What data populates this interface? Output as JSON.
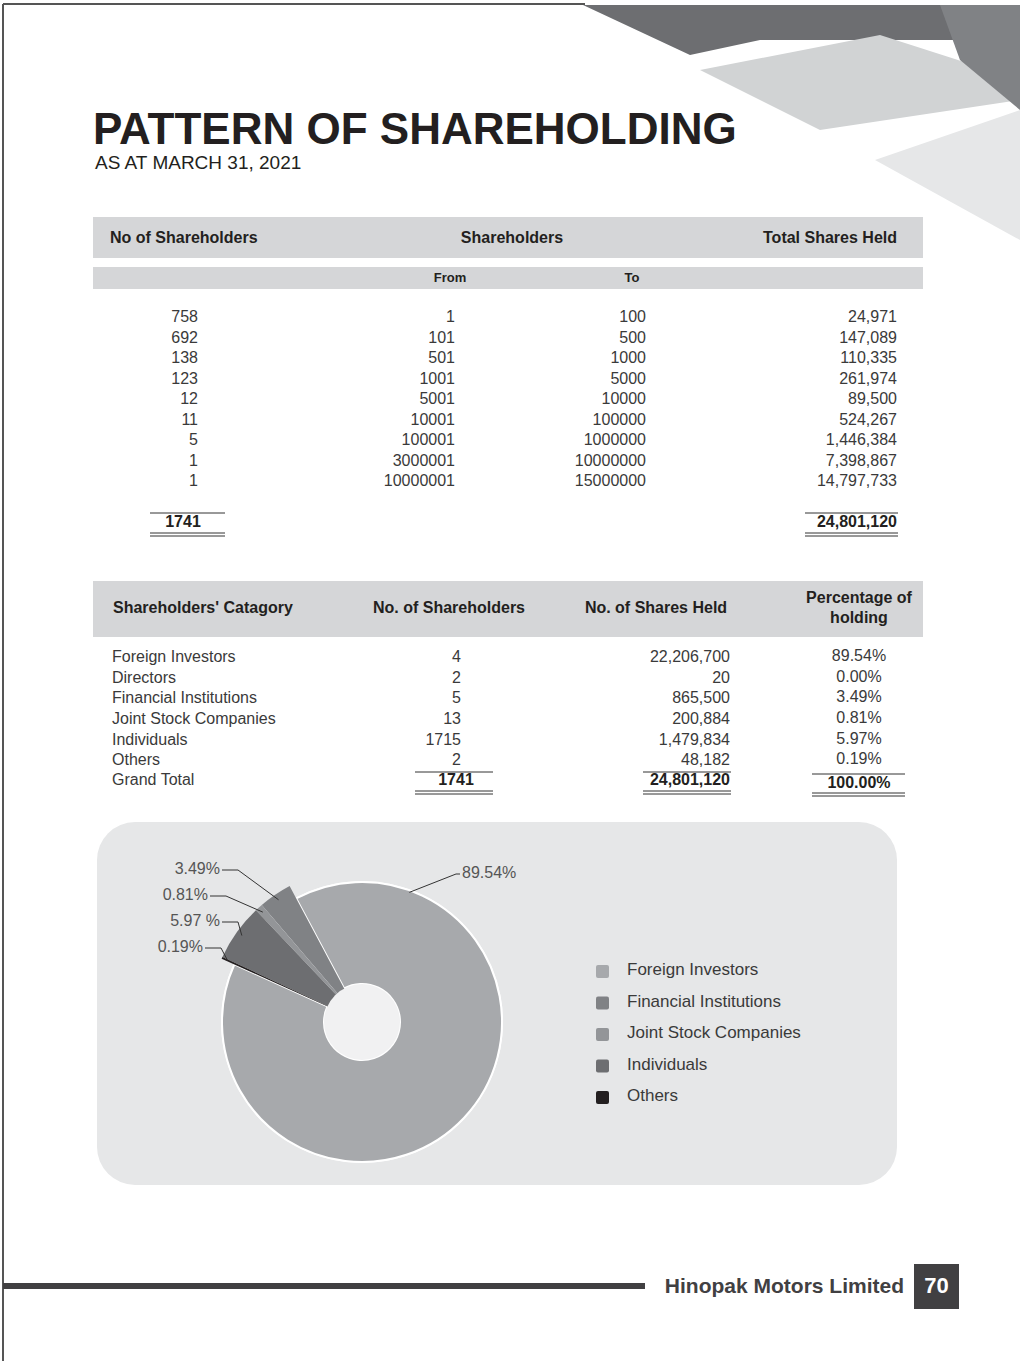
{
  "header": {
    "title": "PATTERN OF SHAREHOLDING",
    "subtitle": "AS AT MARCH 31, 2021"
  },
  "table1": {
    "columns": [
      "No of Shareholders",
      "Shareholders",
      "Total Shares Held"
    ],
    "subcolumns": [
      "From",
      "To"
    ],
    "rows": [
      [
        "758",
        "1",
        "100",
        "24,971"
      ],
      [
        "692",
        "101",
        "500",
        "147,089"
      ],
      [
        "138",
        "501",
        "1000",
        "110,335"
      ],
      [
        "123",
        "1001",
        "5000",
        "261,974"
      ],
      [
        "12",
        "5001",
        "10000",
        "89,500"
      ],
      [
        "11",
        "10001",
        "100000",
        "524,267"
      ],
      [
        "5",
        "100001",
        "1000000",
        "1,446,384"
      ],
      [
        "1",
        "3000001",
        "10000000",
        "7,398,867"
      ],
      [
        "1",
        "10000001",
        "15000000",
        "14,797,733"
      ]
    ],
    "total": [
      "1741",
      "24,801,120"
    ]
  },
  "table2": {
    "columns": [
      "Shareholders' Catagory",
      "No. of Shareholders",
      "No. of Shares Held",
      "Percentage of holding"
    ],
    "rows": [
      [
        "Foreign Investors",
        "4",
        "22,206,700",
        "89.54%"
      ],
      [
        "Directors",
        "2",
        "20",
        "0.00%"
      ],
      [
        "Financial Institutions",
        "5",
        "865,500",
        "3.49%"
      ],
      [
        "Joint Stock Companies",
        "13",
        "200,884",
        "0.81%"
      ],
      [
        "Individuals",
        "1715",
        "1,479,834",
        "5.97%"
      ],
      [
        "Others",
        "2",
        "48,182",
        "0.19%"
      ]
    ],
    "total": [
      "Grand Total",
      "1741",
      "24,801,120",
      "100.00%"
    ]
  },
  "chart_data": {
    "type": "pie",
    "categories": [
      "Foreign Investors",
      "Financial Institutions",
      "Joint Stock Companies",
      "Individuals",
      "Others"
    ],
    "values": [
      89.54,
      3.49,
      0.81,
      5.97,
      0.19
    ],
    "value_labels": [
      "89.54%",
      "3.49%",
      "0.81%",
      "5.97 %",
      "0.19%"
    ],
    "colors": [
      "#a7a9ac",
      "#808285",
      "#939598",
      "#6d6e71",
      "#231f20"
    ],
    "data_labels": true,
    "legend": "right"
  },
  "footer": {
    "company": "Hinopak Motors Limited",
    "page": "70"
  }
}
